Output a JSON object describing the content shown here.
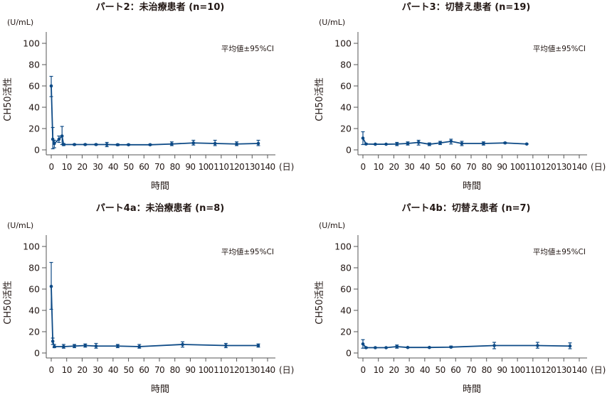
{
  "common": {
    "unit_label": "(U/mL)",
    "y_label": "CH50活性",
    "x_label": "時間",
    "x_unit": "(日)",
    "legend_note": "平均値±95%CI",
    "line_color": "#0d4a86"
  },
  "chart_data": [
    {
      "type": "line",
      "title": "パート2：未治療患者 (n=10)",
      "xlabel": "時間",
      "ylabel": "CH50活性",
      "xlim": [
        0,
        140
      ],
      "ylim": [
        0,
        100
      ],
      "xticks": [
        "0",
        "10",
        "20",
        "30",
        "40",
        "50",
        "60",
        "70",
        "80",
        "90",
        "100",
        "110",
        "120",
        "130",
        "140"
      ],
      "yticks": [
        "0",
        "20",
        "40",
        "60",
        "80",
        "100"
      ],
      "points": [
        {
          "x": 0,
          "y": 60,
          "lo": 50,
          "hi": 69
        },
        {
          "x": 1,
          "y": 10,
          "lo": 1,
          "hi": 21
        },
        {
          "x": 2,
          "y": 6,
          "lo": 2,
          "hi": 9
        },
        {
          "x": 5,
          "y": 10,
          "lo": 7,
          "hi": 13
        },
        {
          "x": 7,
          "y": 13,
          "lo": 5,
          "hi": 22
        },
        {
          "x": 8,
          "y": 5,
          "lo": 4,
          "hi": 6
        },
        {
          "x": 15,
          "y": 5,
          "lo": 4.5,
          "hi": 5.5
        },
        {
          "x": 22,
          "y": 5,
          "lo": 4.5,
          "hi": 5.5
        },
        {
          "x": 29,
          "y": 5,
          "lo": 4.5,
          "hi": 5.5
        },
        {
          "x": 36,
          "y": 5,
          "lo": 3,
          "hi": 7
        },
        {
          "x": 43,
          "y": 4.8,
          "lo": 4,
          "hi": 5.5
        },
        {
          "x": 50,
          "y": 4.8,
          "lo": 4.3,
          "hi": 5.3
        },
        {
          "x": 64,
          "y": 4.8,
          "lo": 4.3,
          "hi": 5.3
        },
        {
          "x": 78,
          "y": 5.5,
          "lo": 4,
          "hi": 7.5
        },
        {
          "x": 92,
          "y": 6.5,
          "lo": 4.5,
          "hi": 9
        },
        {
          "x": 106,
          "y": 6,
          "lo": 4,
          "hi": 9
        },
        {
          "x": 120,
          "y": 5.5,
          "lo": 4,
          "hi": 7.5
        },
        {
          "x": 134,
          "y": 6,
          "lo": 4,
          "hi": 9
        }
      ]
    },
    {
      "type": "line",
      "title": "パート3：切替え患者 (n=19)",
      "xlabel": "時間",
      "ylabel": "CH50活性",
      "xlim": [
        0,
        140
      ],
      "ylim": [
        0,
        100
      ],
      "xticks": [
        "0",
        "10",
        "20",
        "30",
        "40",
        "50",
        "60",
        "70",
        "80",
        "90",
        "100",
        "110",
        "120",
        "130",
        "140"
      ],
      "yticks": [
        "0",
        "20",
        "40",
        "60",
        "80",
        "100"
      ],
      "points": [
        {
          "x": 0,
          "y": 11,
          "lo": 5,
          "hi": 17
        },
        {
          "x": 2,
          "y": 5.5,
          "lo": 5,
          "hi": 6
        },
        {
          "x": 8,
          "y": 5.3,
          "lo": 5,
          "hi": 5.6
        },
        {
          "x": 15,
          "y": 5.3,
          "lo": 5,
          "hi": 5.6
        },
        {
          "x": 22,
          "y": 5.5,
          "lo": 4,
          "hi": 7
        },
        {
          "x": 29,
          "y": 6,
          "lo": 4.5,
          "hi": 7.5
        },
        {
          "x": 36,
          "y": 7,
          "lo": 4.5,
          "hi": 9
        },
        {
          "x": 43,
          "y": 5.3,
          "lo": 4,
          "hi": 6.5
        },
        {
          "x": 50,
          "y": 6.5,
          "lo": 5,
          "hi": 8
        },
        {
          "x": 57,
          "y": 8,
          "lo": 5.5,
          "hi": 10
        },
        {
          "x": 64,
          "y": 6,
          "lo": 4,
          "hi": 8
        },
        {
          "x": 78,
          "y": 6,
          "lo": 4.5,
          "hi": 7.5
        },
        {
          "x": 92,
          "y": 6.5,
          "lo": 6,
          "hi": 7
        },
        {
          "x": 106,
          "y": 5.5,
          "lo": 5.3,
          "hi": 5.7
        }
      ]
    },
    {
      "type": "line",
      "title": "パート4a：未治療患者 (n=8)",
      "xlabel": "時間",
      "ylabel": "CH50活性",
      "xlim": [
        0,
        140
      ],
      "ylim": [
        0,
        100
      ],
      "xticks": [
        "0",
        "10",
        "20",
        "30",
        "40",
        "50",
        "60",
        "70",
        "80",
        "90",
        "100",
        "110",
        "120",
        "130",
        "140"
      ],
      "yticks": [
        "0",
        "20",
        "40",
        "60",
        "80",
        "100"
      ],
      "points": [
        {
          "x": 0,
          "y": 62.5,
          "lo": 41,
          "hi": 85
        },
        {
          "x": 1,
          "y": 11,
          "lo": 8,
          "hi": 14
        },
        {
          "x": 2,
          "y": 6,
          "lo": 5,
          "hi": 8
        },
        {
          "x": 8,
          "y": 6,
          "lo": 4.5,
          "hi": 8
        },
        {
          "x": 15,
          "y": 6.5,
          "lo": 5,
          "hi": 8
        },
        {
          "x": 22,
          "y": 7,
          "lo": 5.5,
          "hi": 8.5
        },
        {
          "x": 29,
          "y": 6.5,
          "lo": 4.5,
          "hi": 9
        },
        {
          "x": 43,
          "y": 6.5,
          "lo": 5,
          "hi": 8
        },
        {
          "x": 57,
          "y": 6,
          "lo": 4.5,
          "hi": 8
        },
        {
          "x": 85,
          "y": 8,
          "lo": 5.5,
          "hi": 10.5
        },
        {
          "x": 113,
          "y": 7,
          "lo": 5,
          "hi": 9
        },
        {
          "x": 134,
          "y": 7,
          "lo": 5.5,
          "hi": 8.5
        }
      ]
    },
    {
      "type": "line",
      "title": "パート4b：切替え患者 (n=7)",
      "xlabel": "時間",
      "ylabel": "CH50活性",
      "xlim": [
        0,
        140
      ],
      "ylim": [
        0,
        100
      ],
      "xticks": [
        "0",
        "10",
        "20",
        "30",
        "40",
        "50",
        "60",
        "70",
        "80",
        "90",
        "100",
        "110",
        "120",
        "130",
        "140"
      ],
      "yticks": [
        "0",
        "20",
        "40",
        "60",
        "80",
        "100"
      ],
      "points": [
        {
          "x": 0,
          "y": 8.5,
          "lo": 4.5,
          "hi": 12.5
        },
        {
          "x": 2,
          "y": 5,
          "lo": 4.5,
          "hi": 5.5
        },
        {
          "x": 8,
          "y": 5,
          "lo": 4.7,
          "hi": 5.3
        },
        {
          "x": 15,
          "y": 5,
          "lo": 4.7,
          "hi": 5.3
        },
        {
          "x": 22,
          "y": 6,
          "lo": 4.5,
          "hi": 7.5
        },
        {
          "x": 29,
          "y": 5.2,
          "lo": 4.9,
          "hi": 5.5
        },
        {
          "x": 43,
          "y": 5.2,
          "lo": 4.9,
          "hi": 5.5
        },
        {
          "x": 57,
          "y": 5.5,
          "lo": 5,
          "hi": 6.5
        },
        {
          "x": 85,
          "y": 7,
          "lo": 4,
          "hi": 10
        },
        {
          "x": 113,
          "y": 7,
          "lo": 4.5,
          "hi": 10
        },
        {
          "x": 134,
          "y": 6.5,
          "lo": 4,
          "hi": 9.5
        }
      ]
    }
  ]
}
